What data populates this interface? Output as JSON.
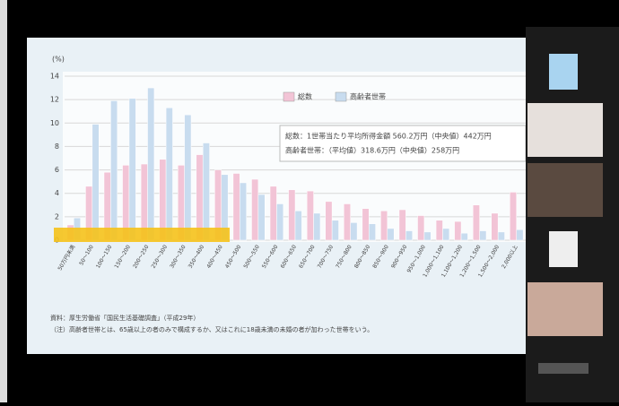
{
  "chart_data": {
    "type": "bar",
    "y_label": "(%)",
    "categories": [
      "50万円未満",
      "50～100",
      "100～150",
      "150～200",
      "200～250",
      "250～300",
      "300～350",
      "350～400",
      "400～450",
      "450～500",
      "500～550",
      "550～600",
      "600～650",
      "650～700",
      "700～750",
      "750～800",
      "800～850",
      "850～900",
      "900～950",
      "950～1,000",
      "1,000～1,100",
      "1,100～1,200",
      "1,200～1,500",
      "1,500～2,000",
      "2,000以上"
    ],
    "series": [
      {
        "name": "総数",
        "color": "#f2c4d6",
        "values": [
          1.3,
          4.6,
          5.8,
          6.4,
          6.5,
          6.9,
          6.4,
          7.3,
          6.0,
          5.7,
          5.2,
          4.6,
          4.3,
          4.2,
          3.3,
          3.1,
          2.7,
          2.5,
          2.6,
          2.1,
          1.7,
          1.6,
          3.0,
          2.3,
          4.1
        ]
      },
      {
        "name": "高齢者世帯",
        "color": "#c8dcef",
        "values": [
          1.9,
          9.9,
          11.9,
          12.1,
          13.0,
          11.3,
          10.7,
          8.3,
          5.6,
          4.9,
          3.9,
          3.1,
          2.5,
          2.3,
          1.7,
          1.5,
          1.4,
          1.0,
          0.8,
          0.7,
          1.0,
          0.6,
          0.8,
          0.7,
          0.9
        ]
      }
    ],
    "ylim": [
      0,
      14
    ],
    "yticks": [
      0,
      2,
      4,
      6,
      8,
      10,
      12,
      14
    ],
    "grid": true,
    "legend": "top",
    "annotations": [
      "総数：1世帯当たり平均所得金額 560.2万円（中央値）442万円",
      "高齢者世帯：（平均値）318.6万円（中央値）258万円"
    ],
    "source": "資料：厚生労働省「国民生活基礎調査」（平成29年）",
    "note": "（注）高齢者世帯とは、65歳以上の者のみで構成するか、又はこれに18歳未満の未婚の者が加わった世帯をいう。"
  }
}
